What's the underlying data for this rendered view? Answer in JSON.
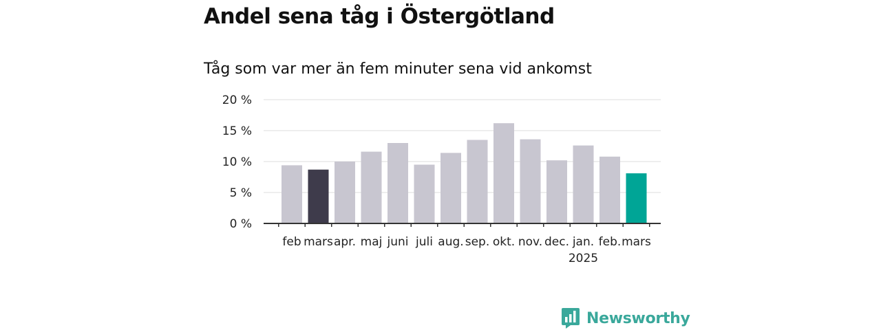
{
  "header": {
    "title": "Andel sena tåg i Östergötland",
    "subtitle": "Tåg som var mer än fem minuter sena vid ankomst"
  },
  "brand": {
    "name": "Newsworthy",
    "icon": "newsworthy-logo-icon",
    "color": "#3aa89b"
  },
  "chart_data": {
    "type": "bar",
    "categories": [
      "feb",
      "mars",
      "apr.",
      "maj",
      "juni",
      "juli",
      "aug.",
      "sep.",
      "okt.",
      "nov.",
      "dec.",
      "jan.",
      "feb.",
      "mars"
    ],
    "year_labels": [
      "",
      "",
      "",
      "",
      "",
      "",
      "",
      "",
      "",
      "",
      "",
      "2025",
      "",
      ""
    ],
    "values": [
      9.4,
      8.7,
      10.0,
      11.6,
      13.0,
      9.5,
      11.4,
      13.5,
      16.2,
      13.6,
      10.2,
      12.6,
      10.8,
      8.1
    ],
    "bar_colors": [
      "#c8c6d0",
      "#3e3b4b",
      "#c8c6d0",
      "#c8c6d0",
      "#c8c6d0",
      "#c8c6d0",
      "#c8c6d0",
      "#c8c6d0",
      "#c8c6d0",
      "#c8c6d0",
      "#c8c6d0",
      "#c8c6d0",
      "#c8c6d0",
      "#00a596"
    ],
    "ylim": [
      0,
      20
    ],
    "yticks": [
      0,
      5,
      10,
      15,
      20
    ],
    "ytick_labels": [
      "0 %",
      "5 %",
      "10 %",
      "15 %",
      "20 %"
    ],
    "grid": true,
    "xlabel": "",
    "ylabel": ""
  }
}
